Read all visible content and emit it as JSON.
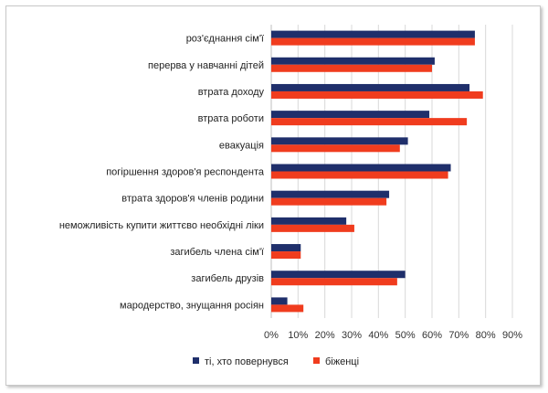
{
  "chart_data": {
    "type": "bar",
    "orientation": "horizontal",
    "categories": [
      "роз'єднання сім'ї",
      "перерва у навчанні дітей",
      "втрата доходу",
      "втрата роботи",
      "евакуація",
      "погіршення здоров'я  респондента",
      "втрата здоров'я  членів родини",
      "неможливість купити життєво необхідні ліки",
      "загибель члена сім'ї",
      "загибель друзів",
      "мародерство, знущання росіян"
    ],
    "series": [
      {
        "name": "ті, хто повернувся",
        "color": "#1f2f6b",
        "values": [
          76,
          61,
          74,
          59,
          51,
          67,
          44,
          28,
          11,
          50,
          6
        ]
      },
      {
        "name": "біженці",
        "color": "#f03c1e",
        "values": [
          76,
          60,
          79,
          73,
          48,
          66,
          43,
          31,
          11,
          47,
          12
        ]
      }
    ],
    "xlim": [
      0,
      90
    ],
    "xticks": [
      "0%",
      "10%",
      "20%",
      "30%",
      "40%",
      "50%",
      "60%",
      "70%",
      "80%",
      "90%"
    ],
    "grid": true,
    "legend": "bottom"
  }
}
